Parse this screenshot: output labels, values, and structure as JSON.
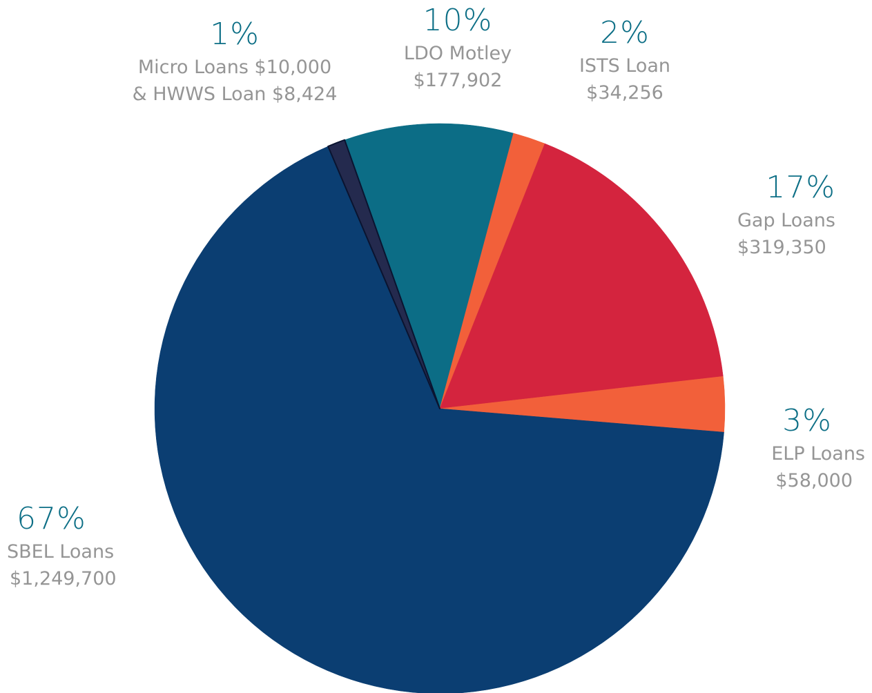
{
  "chart_data": {
    "type": "pie",
    "title": "",
    "unit": "$",
    "slices": [
      {
        "key": "ldo",
        "name": "LDO Motley",
        "amount": "$177,902",
        "percent_label": "10%",
        "value": 177902,
        "color": "#0c6d86"
      },
      {
        "key": "ists",
        "name": "ISTS Loan",
        "amount": "$34,256",
        "percent_label": "2%",
        "value": 34256,
        "color": "#f2603a"
      },
      {
        "key": "gap",
        "name": "Gap Loans",
        "amount": "$319,350",
        "percent_label": "17%",
        "value": 319350,
        "color": "#d4243e"
      },
      {
        "key": "elp",
        "name": "ELP Loans",
        "amount": "$58,000",
        "percent_label": "3%",
        "value": 58000,
        "color": "#f2603a"
      },
      {
        "key": "sbel",
        "name": "SBEL Loans",
        "amount": "$1,249,700",
        "percent_label": "67%",
        "value": 1249700,
        "color": "#0b3e72"
      },
      {
        "key": "micro",
        "name": "Micro Loans $10,000",
        "amount": "& HWWS Loan $8,424",
        "percent_label": "1%",
        "value": 18424,
        "color": "#242a4e"
      }
    ]
  }
}
